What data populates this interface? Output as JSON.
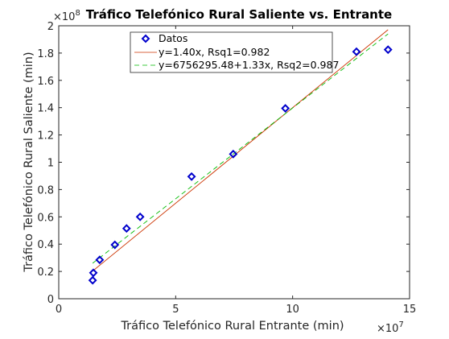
{
  "chart_data": {
    "type": "scatter",
    "title": "Tráfico Telefónico Rural Saliente vs. Entrante",
    "xlabel": "Tráfico Telefónico Rural Entrante (min)",
    "ylabel": "Tráfico Telefónico Rural Saliente (min)",
    "xlim": [
      0,
      150000000
    ],
    "ylim": [
      0,
      200000000
    ],
    "x_ticks": [
      0,
      50000000,
      100000000,
      150000000
    ],
    "x_tick_labels": [
      "0",
      "5",
      "10",
      "15"
    ],
    "y_ticks": [
      0,
      20000000,
      40000000,
      60000000,
      80000000,
      100000000,
      120000000,
      140000000,
      160000000,
      180000000,
      200000000
    ],
    "y_tick_labels": [
      "0",
      "0.2",
      "0.4",
      "0.6",
      "0.8",
      "1",
      "1.2",
      "1.4",
      "1.6",
      "1.8",
      "2"
    ],
    "x_multiplier": "×10",
    "x_multiplier_exp": "7",
    "y_multiplier": "×10",
    "y_multiplier_exp": "8",
    "grid": false,
    "legend_position": "top-center",
    "series": [
      {
        "name": "Datos",
        "kind": "markers",
        "marker": "diamond",
        "color": "#0000cc",
        "x": [
          14500000,
          14800000,
          17500000,
          24000000,
          29000000,
          34800000,
          56800000,
          74600000,
          96900000,
          127300000,
          140800000
        ],
        "y": [
          13500000,
          19000000,
          28500000,
          39500000,
          51500000,
          60000000,
          89500000,
          106000000,
          139500000,
          181000000,
          182500000
        ]
      },
      {
        "name": "y=1.40x, Rsq1=0.982",
        "kind": "line",
        "color": "#cc3300",
        "dash": "solid",
        "slope": 1.4,
        "intercept": 0,
        "x_range": [
          14500000,
          140800000
        ]
      },
      {
        "name": "y=6756295.48+1.33x, Rsq2=0.987",
        "kind": "line",
        "color": "#00bb00",
        "dash": "dashed",
        "slope": 1.33,
        "intercept": 6756295.48,
        "x_range": [
          14500000,
          140800000
        ]
      }
    ]
  }
}
